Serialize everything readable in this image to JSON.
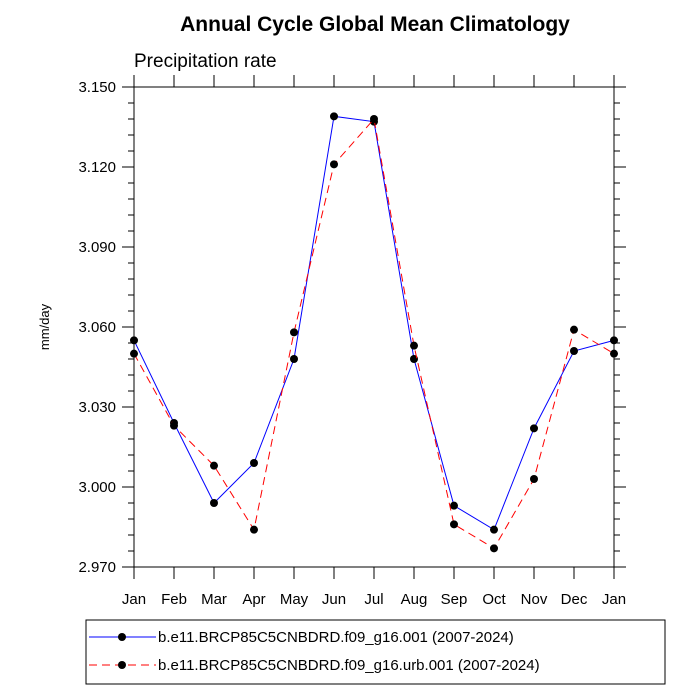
{
  "chart_data": {
    "type": "line",
    "title": "Annual Cycle Global Mean Climatology",
    "subtitle": "Precipitation rate",
    "xlabel": "",
    "ylabel": "mm/day",
    "categories": [
      "Jan",
      "Feb",
      "Mar",
      "Apr",
      "May",
      "Jun",
      "Jul",
      "Aug",
      "Sep",
      "Oct",
      "Nov",
      "Dec",
      "Jan"
    ],
    "ylim": [
      2.97,
      3.15
    ],
    "yticks": [
      "2.970",
      "3.000",
      "3.030",
      "3.060",
      "3.090",
      "3.120",
      "3.150"
    ],
    "grid": false,
    "legend_position": "bottom",
    "series": [
      {
        "name": "b.e11.BRCP85C5CNBDRD.f09_g16.001 (2007-2024)",
        "color": "#0000ff",
        "dash": "solid",
        "values": [
          3.055,
          3.024,
          2.994,
          3.009,
          3.048,
          3.139,
          3.137,
          3.048,
          2.993,
          2.984,
          3.022,
          3.051,
          3.055
        ]
      },
      {
        "name": "b.e11.BRCP85C5CNBDRD.f09_g16.urb.001 (2007-2024)",
        "color": "#ff0000",
        "dash": "dashed",
        "values": [
          3.05,
          3.023,
          3.008,
          2.984,
          3.058,
          3.121,
          3.138,
          3.053,
          2.986,
          2.977,
          3.003,
          3.059,
          3.05
        ]
      }
    ]
  }
}
